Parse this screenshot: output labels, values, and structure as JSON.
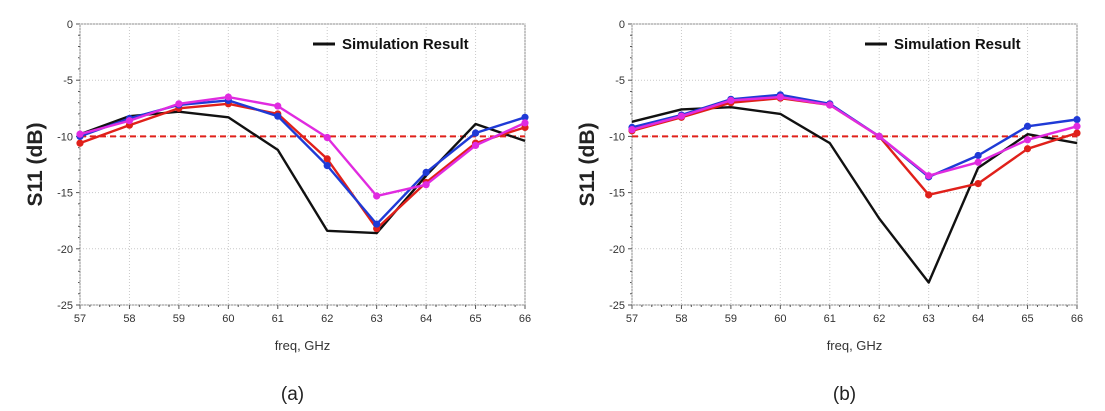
{
  "chart_data": [
    {
      "type": "line",
      "panel_label": "(a)",
      "xlabel": "freq, GHz",
      "ylabel": "S11 (dB)",
      "xlim": [
        57,
        66
      ],
      "ylim": [
        -25,
        0
      ],
      "x_ticks": [
        57,
        58,
        59,
        60,
        61,
        62,
        63,
        64,
        65,
        66
      ],
      "y_ticks": [
        0,
        -5,
        -10,
        -15,
        -20,
        -25
      ],
      "grid": true,
      "legend_position": "top-right",
      "reference_line": {
        "y": -10,
        "color": "#e0201a",
        "style": "dashed"
      },
      "x": [
        57,
        58,
        59,
        60,
        61,
        62,
        63,
        64,
        65,
        66
      ],
      "series": [
        {
          "name": "Simulation Result",
          "color": "#111111",
          "markers": false,
          "show_in_legend": true,
          "values": [
            -9.8,
            -8.2,
            -7.8,
            -8.3,
            -11.2,
            -18.4,
            -18.6,
            -13.5,
            -8.9,
            -10.4
          ]
        },
        {
          "color": "#e0201a",
          "markers": true,
          "show_in_legend": false,
          "values": [
            -10.6,
            -9.0,
            -7.5,
            -7.1,
            -8.0,
            -12.0,
            -18.2,
            -14.1,
            -10.6,
            -9.2
          ]
        },
        {
          "color": "#1f3ad6",
          "markers": true,
          "show_in_legend": false,
          "values": [
            -10.0,
            -8.4,
            -7.2,
            -6.8,
            -8.2,
            -12.6,
            -17.8,
            -13.2,
            -9.7,
            -8.3
          ]
        },
        {
          "color": "#e02be0",
          "markers": true,
          "show_in_legend": false,
          "values": [
            -9.8,
            -8.6,
            -7.1,
            -6.5,
            -7.3,
            -10.1,
            -15.3,
            -14.3,
            -10.8,
            -8.8
          ]
        }
      ]
    },
    {
      "type": "line",
      "panel_label": "(b)",
      "xlabel": "freq, GHz",
      "ylabel": "S11 (dB)",
      "xlim": [
        57,
        66
      ],
      "ylim": [
        -25,
        0
      ],
      "x_ticks": [
        57,
        58,
        59,
        60,
        61,
        62,
        63,
        64,
        65,
        66
      ],
      "y_ticks": [
        0,
        -5,
        -10,
        -15,
        -20,
        -25
      ],
      "grid": true,
      "legend_position": "top-right",
      "reference_line": {
        "y": -10,
        "color": "#e0201a",
        "style": "dashed"
      },
      "x": [
        57,
        58,
        59,
        60,
        61,
        62,
        63,
        64,
        65,
        66
      ],
      "series": [
        {
          "name": "Simulation Result",
          "color": "#111111",
          "markers": false,
          "show_in_legend": true,
          "values": [
            -8.7,
            -7.6,
            -7.4,
            -8.0,
            -10.6,
            -17.3,
            -23.0,
            -12.8,
            -9.8,
            -10.6
          ]
        },
        {
          "color": "#e0201a",
          "markers": true,
          "show_in_legend": false,
          "values": [
            -9.5,
            -8.3,
            -7.0,
            -6.6,
            -7.2,
            -10.0,
            -15.2,
            -14.2,
            -11.1,
            -9.7
          ]
        },
        {
          "color": "#1f3ad6",
          "markers": true,
          "show_in_legend": false,
          "values": [
            -9.2,
            -8.1,
            -6.7,
            -6.3,
            -7.1,
            -10.0,
            -13.6,
            -11.7,
            -9.1,
            -8.5
          ]
        },
        {
          "color": "#e02be0",
          "markers": true,
          "show_in_legend": false,
          "values": [
            -9.4,
            -8.2,
            -6.8,
            -6.5,
            -7.2,
            -10.0,
            -13.5,
            -12.3,
            -10.3,
            -9.1
          ]
        }
      ]
    }
  ]
}
